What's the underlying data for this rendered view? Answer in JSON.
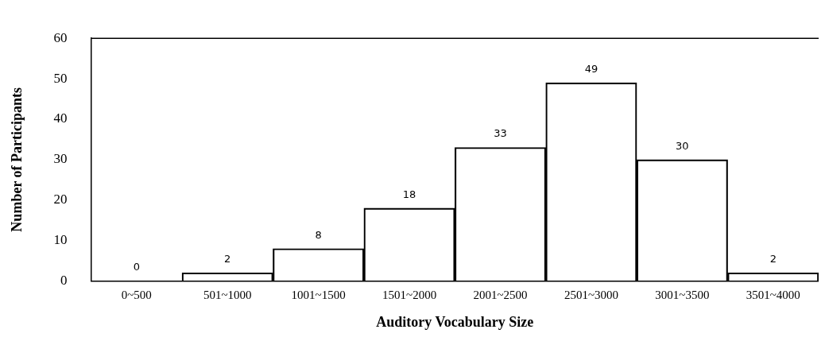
{
  "chart_data": {
    "type": "bar",
    "xlabel": "Auditory Vocabulary Size",
    "ylabel": "Number of Participants",
    "categories": [
      "0~500",
      "501~1000",
      "1001~1500",
      "1501~2000",
      "2001~2500",
      "2501~3000",
      "3001~3500",
      "3501~4000"
    ],
    "values": [
      0,
      2,
      8,
      18,
      33,
      49,
      30,
      2
    ],
    "color": "#000000",
    "ylim": [
      0,
      60
    ],
    "yticks": [
      0,
      10,
      20,
      30,
      40,
      50,
      60
    ],
    "grid": false,
    "data_labels": true,
    "legend": false
  }
}
